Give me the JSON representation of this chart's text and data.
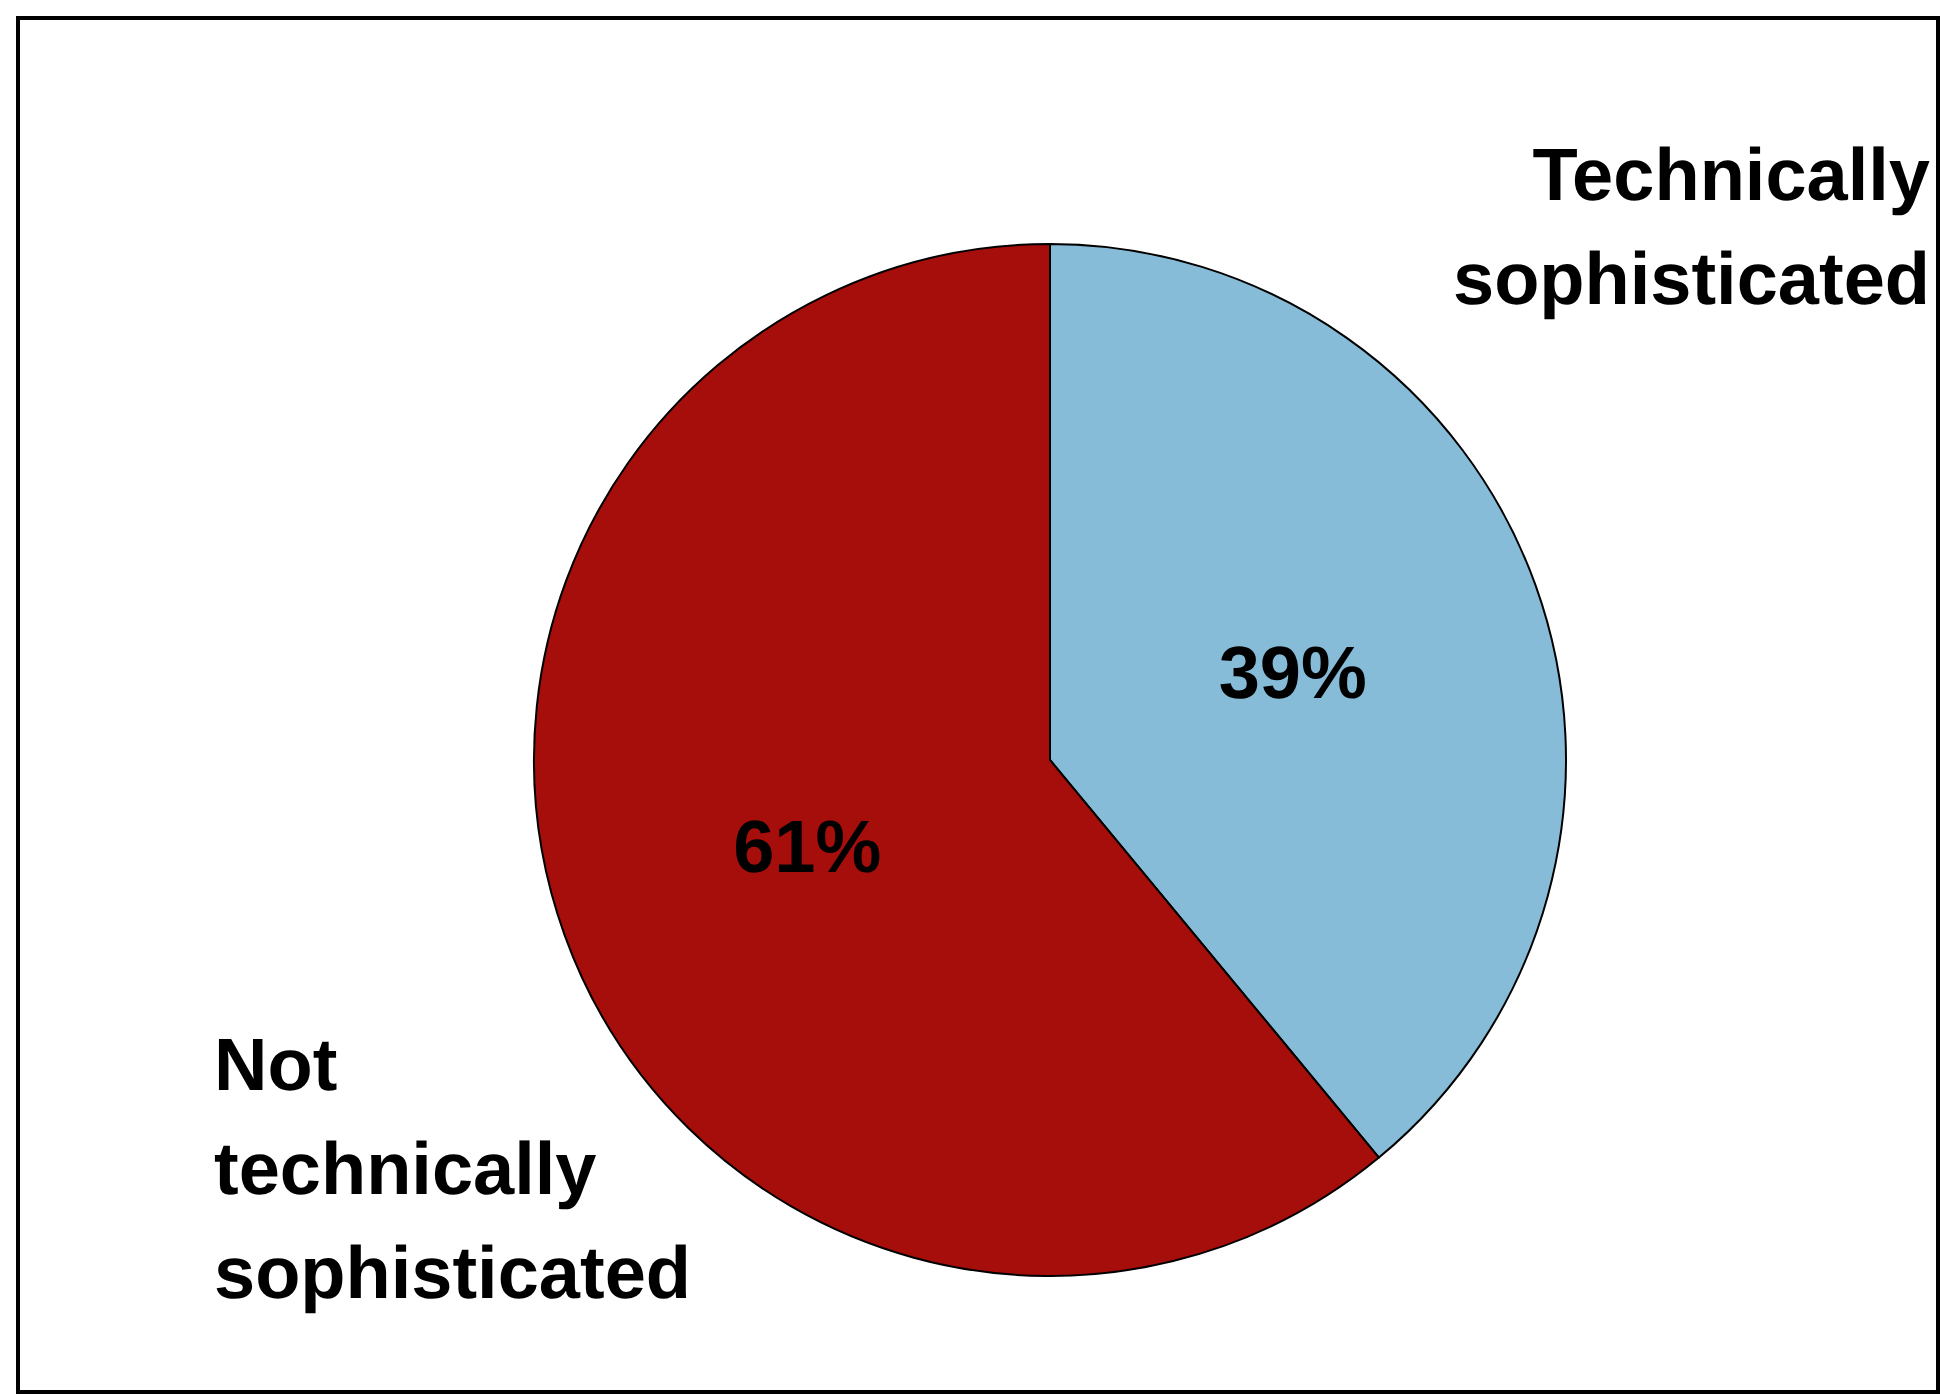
{
  "chart_data": {
    "type": "pie",
    "categories": [
      "Technically sophisticated",
      "Not technically sophisticated"
    ],
    "values": [
      39,
      61
    ],
    "colors": [
      "#87bcd9",
      "#a50e0a"
    ],
    "value_labels": [
      "39%",
      "61%"
    ]
  }
}
